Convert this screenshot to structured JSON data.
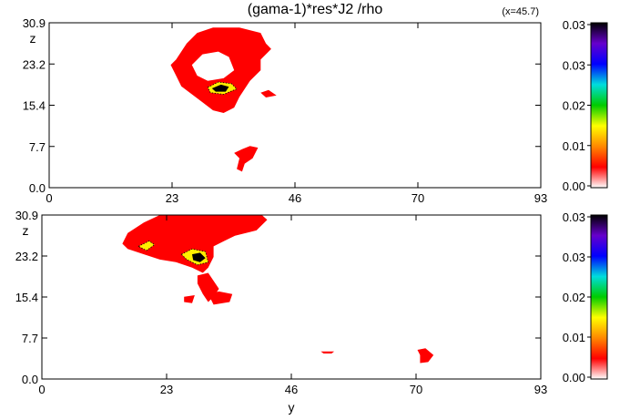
{
  "figure": {
    "title": "(gama-1)*res*J2 /rho",
    "annotation": "(x=45.7)"
  },
  "colors": {
    "blob": "#ff0000",
    "hot_yellow": "#ffee00",
    "hot_dark": "#000000",
    "background": "#ffffff",
    "colorbar_stops": [
      "#ffffff",
      "#ff0000",
      "#ff8800",
      "#ffff00",
      "#00cc00",
      "#00dddd",
      "#0000ff",
      "#6600cc",
      "#000000"
    ]
  },
  "chart_data": [
    {
      "type": "heatmap",
      "panel": "top",
      "xlabel": "",
      "ylabel": "z",
      "xlim": [
        0,
        93
      ],
      "ylim": [
        0,
        30.9
      ],
      "xticks": [
        "0",
        "23",
        "46",
        "70",
        "93"
      ],
      "yticks": [
        "0.0",
        "7.7",
        "15.4",
        "23.2",
        "30.9"
      ],
      "colorbar": {
        "ticks": [
          "0.00",
          "0.01",
          "0.02",
          "0.03",
          "0.03"
        ],
        "range": [
          0,
          0.035
        ]
      },
      "regions": [
        {
          "level": "low",
          "polygon": [
            [
              24,
              24
            ],
            [
              26,
              27
            ],
            [
              28,
              29
            ],
            [
              31,
              30
            ],
            [
              36,
              30
            ],
            [
              40,
              29
            ],
            [
              41,
              27
            ],
            [
              42,
              26
            ],
            [
              40,
              24
            ],
            [
              40,
              22
            ],
            [
              38,
              20
            ],
            [
              36,
              17
            ],
            [
              35,
              15
            ],
            [
              33,
              14
            ],
            [
              31,
              14.5
            ],
            [
              29,
              16
            ],
            [
              27,
              17.5
            ],
            [
              25,
              19
            ],
            [
              24,
              21
            ],
            [
              23,
              23
            ]
          ]
        },
        {
          "level": "low",
          "polygon": [
            [
              40,
              17.8
            ],
            [
              41.5,
              18.3
            ],
            [
              43,
              17.3
            ],
            [
              41,
              16.9
            ]
          ]
        },
        {
          "level": "low",
          "polygon": [
            [
              35,
              6.5
            ],
            [
              36.5,
              7.2
            ],
            [
              38,
              7.8
            ],
            [
              39.5,
              7.5
            ],
            [
              38.5,
              5.5
            ],
            [
              37,
              4.5
            ],
            [
              36.5,
              3
            ],
            [
              35.5,
              3.5
            ],
            [
              36,
              5.5
            ]
          ]
        },
        {
          "level": "hole",
          "polygon": [
            [
              27,
              23
            ],
            [
              29,
              25
            ],
            [
              32,
              25.5
            ],
            [
              34,
              24.5
            ],
            [
              35,
              22
            ],
            [
              33,
              20.5
            ],
            [
              30,
              20
            ],
            [
              28,
              21
            ]
          ]
        },
        {
          "level": "mid",
          "polygon": [
            [
              30,
              18.8
            ],
            [
              32,
              19.8
            ],
            [
              34.5,
              19.5
            ],
            [
              35.5,
              18.5
            ],
            [
              33,
              17.5
            ],
            [
              30.5,
              17.8
            ]
          ]
        },
        {
          "level": "high",
          "polygon": [
            [
              30.8,
              18.6
            ],
            [
              32.5,
              19.3
            ],
            [
              34,
              18.9
            ],
            [
              33.4,
              18
            ],
            [
              31.5,
              18
            ]
          ]
        }
      ]
    },
    {
      "type": "heatmap",
      "panel": "bottom",
      "xlabel": "y",
      "ylabel": "z",
      "xlim": [
        0,
        93
      ],
      "ylim": [
        0,
        30.9
      ],
      "xticks": [
        "0",
        "23",
        "46",
        "70",
        "93"
      ],
      "yticks": [
        "0.0",
        "7.7",
        "15.4",
        "23.2",
        "30.9"
      ],
      "colorbar": {
        "ticks": [
          "0.00",
          "0.01",
          "0.02",
          "0.03",
          "0.03"
        ],
        "range": [
          0,
          0.035
        ]
      },
      "regions": [
        {
          "level": "low",
          "polygon": [
            [
              15,
              25.5
            ],
            [
              16,
              27.5
            ],
            [
              19,
              29.5
            ],
            [
              22,
              30.9
            ],
            [
              41,
              30.9
            ],
            [
              42,
              30
            ],
            [
              40,
              28
            ],
            [
              36,
              27
            ],
            [
              34,
              26
            ],
            [
              32,
              25
            ],
            [
              32,
              23
            ],
            [
              31,
              21
            ],
            [
              30,
              20
            ],
            [
              28,
              21
            ],
            [
              25,
              22
            ],
            [
              22,
              22.5
            ],
            [
              19,
              23.5
            ],
            [
              16,
              24.5
            ]
          ]
        },
        {
          "level": "low",
          "polygon": [
            [
              29,
              19.5
            ],
            [
              31,
              20
            ],
            [
              33,
              17
            ],
            [
              32,
              15.5
            ],
            [
              31,
              14.5
            ],
            [
              30,
              16
            ],
            [
              29,
              18
            ]
          ]
        },
        {
          "level": "low",
          "polygon": [
            [
              31,
              16
            ],
            [
              33,
              16.5
            ],
            [
              35.5,
              16
            ],
            [
              35,
              14.5
            ],
            [
              32,
              14
            ]
          ]
        },
        {
          "level": "low",
          "polygon": [
            [
              26.5,
              15.5
            ],
            [
              28.5,
              15.8
            ],
            [
              28,
              14.3
            ],
            [
              26.5,
              14.5
            ]
          ]
        },
        {
          "level": "low",
          "polygon": [
            [
              52,
              5.2
            ],
            [
              54.5,
              5.2
            ],
            [
              54,
              4.8
            ],
            [
              52.5,
              4.8
            ]
          ]
        },
        {
          "level": "low",
          "polygon": [
            [
              70,
              5.5
            ],
            [
              71.5,
              5.8
            ],
            [
              73,
              4.5
            ],
            [
              72,
              3.2
            ],
            [
              70.5,
              3
            ],
            [
              70.5,
              4.5
            ]
          ]
        },
        {
          "level": "mid",
          "polygon": [
            [
              18,
              25
            ],
            [
              20,
              26
            ],
            [
              21,
              25.3
            ],
            [
              19.5,
              24.2
            ]
          ]
        },
        {
          "level": "mid",
          "polygon": [
            [
              26,
              23.5
            ],
            [
              28,
              24.5
            ],
            [
              30.5,
              24
            ],
            [
              31,
              22
            ],
            [
              29,
              21.5
            ],
            [
              27,
              22.5
            ]
          ]
        },
        {
          "level": "high",
          "polygon": [
            [
              28,
              23.5
            ],
            [
              29.5,
              23.8
            ],
            [
              30.5,
              22.8
            ],
            [
              29.5,
              22
            ],
            [
              28.2,
              22.4
            ]
          ]
        }
      ]
    }
  ]
}
